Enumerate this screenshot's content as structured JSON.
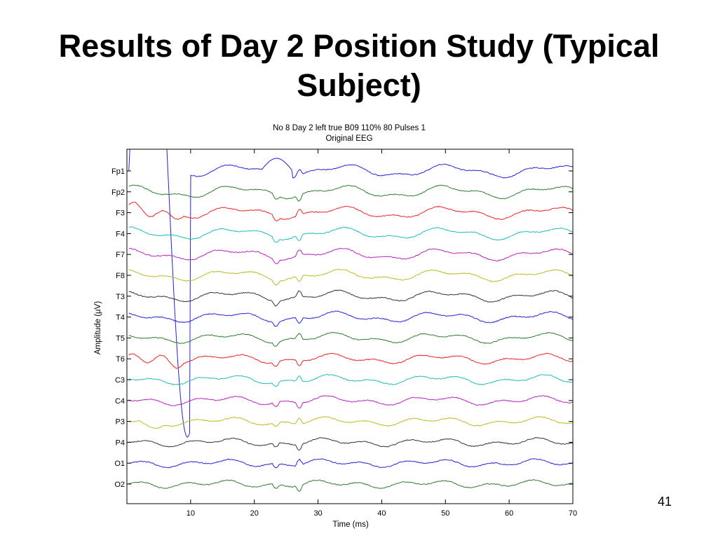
{
  "slide": {
    "title": "Results of Day 2 Position Study (Typical Subject)",
    "page_number": "41"
  },
  "chart_data": {
    "type": "line",
    "title": "No 8 Day 2 left true B09 110% 80 Pulses 1",
    "subtitle": "Original EEG",
    "xlabel": "Time (ms)",
    "ylabel": "Amplitude (μV)",
    "xlim": [
      0,
      70
    ],
    "xticks": [
      10,
      20,
      30,
      40,
      50,
      60,
      70
    ],
    "xtick_labels": [
      "10",
      "20",
      "30",
      "40",
      "50",
      "60",
      "70"
    ],
    "grid": false,
    "channels": [
      "Fp1",
      "Fp2",
      "F3",
      "F4",
      "F7",
      "F8",
      "T3",
      "T4",
      "T5",
      "T6",
      "C3",
      "C4",
      "P3",
      "P4",
      "O1",
      "O2"
    ],
    "colors": [
      "#2222dd",
      "#2e7d2e",
      "#ee2222",
      "#22bbbb",
      "#bb22bb",
      "#bbbb22",
      "#333333",
      "#2222dd",
      "#2e7d2e",
      "#ee2222",
      "#22bbbb",
      "#bb22bb",
      "#bbbb22",
      "#333333",
      "#2222dd",
      "#2e7d2e"
    ]
  }
}
